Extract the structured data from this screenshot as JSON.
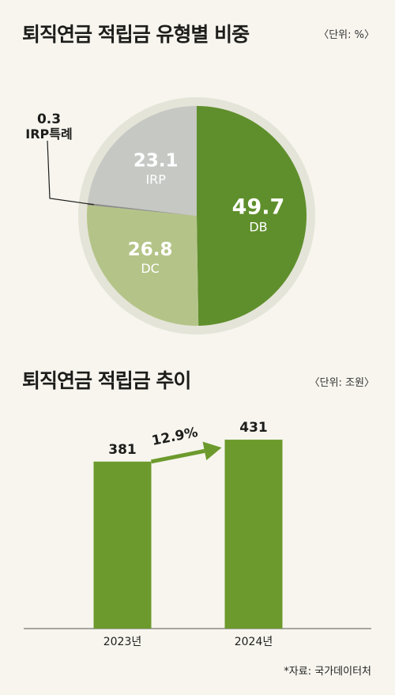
{
  "titles": {
    "pie_title": "퇴직연금 적립금 유형별 비중",
    "pie_unit": "〈단위: %〉",
    "bar_title": "퇴직연금 적립금 추이",
    "bar_unit": "〈단위: 조원〉"
  },
  "source": "*자료: 국가데이터처",
  "colors": {
    "db": "#5f8f2c",
    "dc": "#b4c488",
    "irp": "#c6c8c4",
    "irp_special": "#8c8e8b",
    "ring": "#e4e4d8",
    "bar": "#6c9a2c",
    "arrow": "#6c9a2c"
  },
  "chart_data": [
    {
      "type": "pie",
      "title": "퇴직연금 적립금 유형별 비중",
      "unit": "%",
      "slices": [
        {
          "label": "DB",
          "value": 49.7,
          "value_text": "49.7"
        },
        {
          "label": "DC",
          "value": 26.8,
          "value_text": "26.8"
        },
        {
          "label": "IRP특례",
          "value": 0.3,
          "value_text": "0.3"
        },
        {
          "label": "IRP",
          "value": 23.1,
          "value_text": "23.1"
        }
      ]
    },
    {
      "type": "bar",
      "title": "퇴직연금 적립금 추이",
      "unit": "조원",
      "categories": [
        "2023년",
        "2024년"
      ],
      "values": [
        381,
        431
      ],
      "growth_label": "12.9%"
    }
  ]
}
